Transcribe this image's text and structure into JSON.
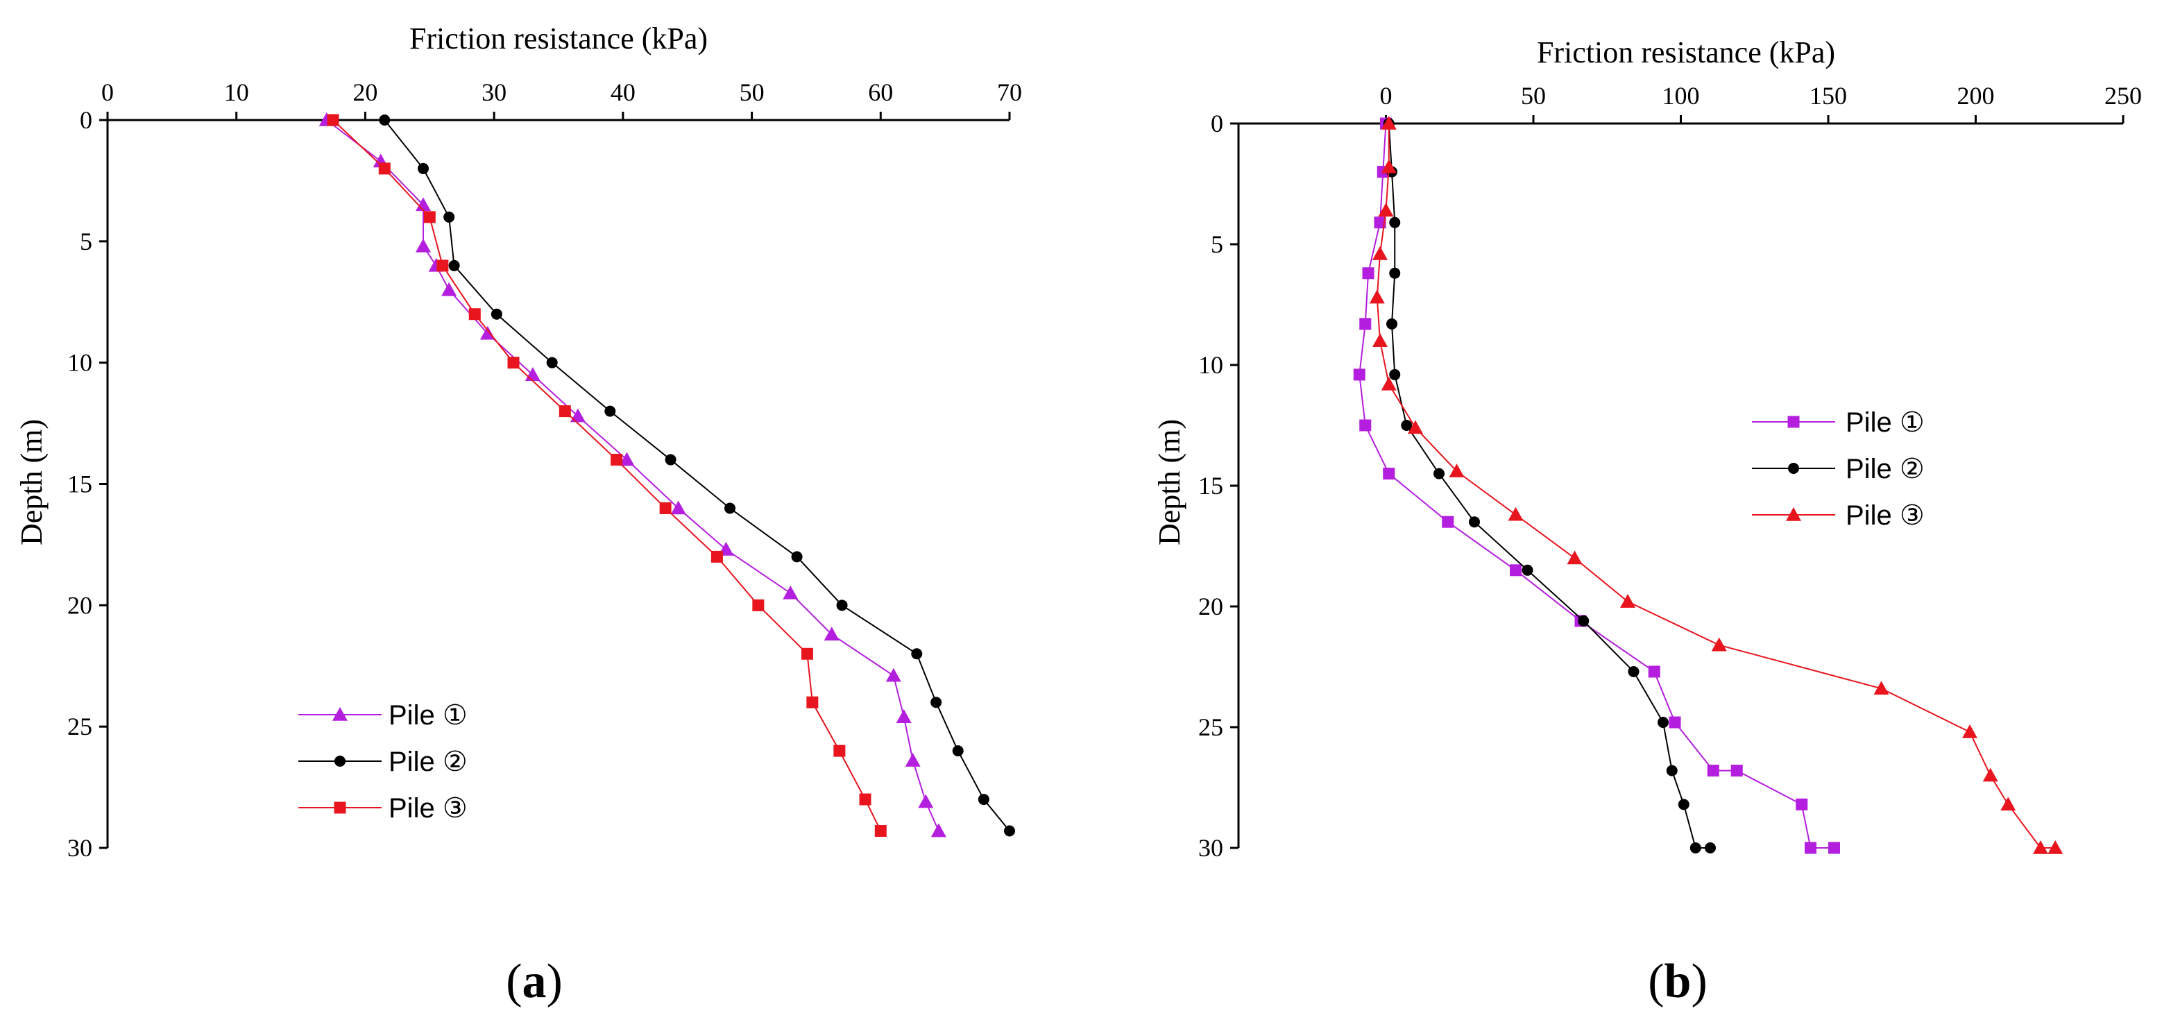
{
  "chart_data": [
    {
      "type": "line",
      "panel": "a",
      "panel_label": "a",
      "title": "",
      "xlabel": "Friction resistance (kPa)",
      "ylabel": "Depth (m)",
      "xlim": [
        0,
        70
      ],
      "ylim": [
        0,
        30
      ],
      "x_ticks": [
        0,
        10,
        20,
        30,
        40,
        50,
        60,
        70
      ],
      "y_ticks": [
        0,
        5,
        10,
        15,
        20,
        25,
        30
      ],
      "x_axis_position": "top",
      "y_inverted": true,
      "legend_position": "bottom-left",
      "series": [
        {
          "name": "Pile ①",
          "marker": "triangle",
          "color": "#b41ede",
          "points": [
            [
              17,
              0
            ],
            [
              21.2,
              1.7
            ],
            [
              24.5,
              3.5
            ],
            [
              24.5,
              5.2
            ],
            [
              25.5,
              6
            ],
            [
              26.5,
              7
            ],
            [
              29.5,
              8.8
            ],
            [
              33,
              10.5
            ],
            [
              36.5,
              12.2
            ],
            [
              40.3,
              14
            ],
            [
              44.3,
              16
            ],
            [
              48,
              17.7
            ],
            [
              53,
              19.5
            ],
            [
              56.2,
              21.2
            ],
            [
              61,
              22.9
            ],
            [
              61.8,
              24.6
            ],
            [
              62.5,
              26.4
            ],
            [
              63.5,
              28.1
            ],
            [
              64.5,
              29.3
            ]
          ]
        },
        {
          "name": "Pile ②",
          "marker": "circle",
          "color": "#000000",
          "points": [
            [
              21.5,
              0
            ],
            [
              24.5,
              2
            ],
            [
              26.5,
              4
            ],
            [
              26.9,
              6
            ],
            [
              30.2,
              8
            ],
            [
              34.5,
              10
            ],
            [
              39,
              12
            ],
            [
              43.7,
              14
            ],
            [
              48.3,
              16
            ],
            [
              53.5,
              18
            ],
            [
              57,
              20
            ],
            [
              62.8,
              22
            ],
            [
              64.3,
              24
            ],
            [
              66,
              26
            ],
            [
              68,
              28
            ],
            [
              70,
              29.3
            ]
          ]
        },
        {
          "name": "Pile ③",
          "marker": "square",
          "color": "#e8141e",
          "points": [
            [
              17.5,
              0
            ],
            [
              21.5,
              2
            ],
            [
              25,
              4
            ],
            [
              26,
              6
            ],
            [
              28.5,
              8
            ],
            [
              31.5,
              10
            ],
            [
              35.5,
              12
            ],
            [
              39.5,
              14
            ],
            [
              43.3,
              16
            ],
            [
              47.3,
              18
            ],
            [
              50.5,
              20
            ],
            [
              54.3,
              22
            ],
            [
              54.7,
              24
            ],
            [
              56.8,
              26
            ],
            [
              58.8,
              28
            ],
            [
              60,
              29.3
            ]
          ]
        }
      ]
    },
    {
      "type": "line",
      "panel": "b",
      "panel_label": "b",
      "title": "",
      "xlabel": "Friction resistance (kPa)",
      "ylabel": "Depth (m)",
      "xlim": [
        -50,
        250
      ],
      "ylim": [
        0,
        30
      ],
      "x_ticks": [
        0,
        50,
        100,
        150,
        200,
        250
      ],
      "y_ticks": [
        0,
        5,
        10,
        15,
        20,
        25,
        30
      ],
      "x_axis_position": "top",
      "y_inverted": true,
      "legend_position": "center-right",
      "series": [
        {
          "name": "Pile ①",
          "marker": "square",
          "color": "#b41ede",
          "points": [
            [
              0,
              0
            ],
            [
              -1,
              2
            ],
            [
              -2,
              4.1
            ],
            [
              -6,
              6.2
            ],
            [
              -7,
              8.3
            ],
            [
              -9,
              10.4
            ],
            [
              -7,
              12.5
            ],
            [
              1,
              14.5
            ],
            [
              21,
              16.5
            ],
            [
              44,
              18.5
            ],
            [
              66,
              20.6
            ],
            [
              91,
              22.7
            ],
            [
              98,
              24.8
            ],
            [
              111,
              26.8
            ],
            [
              119,
              26.8
            ],
            [
              141,
              28.2
            ],
            [
              144,
              30
            ],
            [
              152,
              30
            ]
          ]
        },
        {
          "name": "Pile ②",
          "marker": "circle",
          "color": "#000000",
          "points": [
            [
              1,
              0
            ],
            [
              2,
              2
            ],
            [
              3,
              4.1
            ],
            [
              3,
              6.2
            ],
            [
              2,
              8.3
            ],
            [
              3,
              10.4
            ],
            [
              7,
              12.5
            ],
            [
              18,
              14.5
            ],
            [
              30,
              16.5
            ],
            [
              48,
              18.5
            ],
            [
              67,
              20.6
            ],
            [
              84,
              22.7
            ],
            [
              94,
              24.8
            ],
            [
              97,
              26.8
            ],
            [
              101,
              28.2
            ],
            [
              105,
              30
            ],
            [
              110,
              30
            ]
          ]
        },
        {
          "name": "Pile ③",
          "marker": "triangle",
          "color": "#e8141e",
          "points": [
            [
              1,
              0
            ],
            [
              1,
              1.8
            ],
            [
              0,
              3.6
            ],
            [
              -2,
              5.4
            ],
            [
              -3,
              7.2
            ],
            [
              -2,
              9
            ],
            [
              1,
              10.8
            ],
            [
              10,
              12.6
            ],
            [
              24,
              14.4
            ],
            [
              44,
              16.2
            ],
            [
              64,
              18
            ],
            [
              82,
              19.8
            ],
            [
              113,
              21.6
            ],
            [
              168,
              23.4
            ],
            [
              198,
              25.2
            ],
            [
              205,
              27
            ],
            [
              211,
              28.2
            ],
            [
              222,
              30
            ],
            [
              227,
              30
            ]
          ]
        }
      ]
    }
  ]
}
